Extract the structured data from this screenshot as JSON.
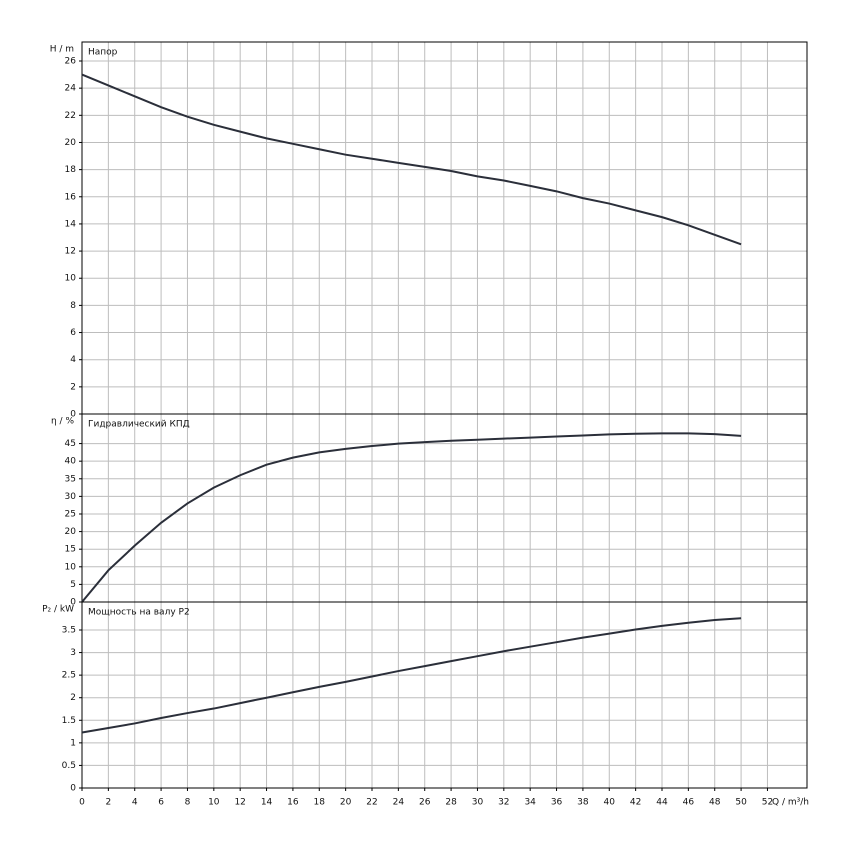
{
  "chart_data": [
    {
      "type": "line",
      "ylabel": "H / m",
      "title": "Напор",
      "x": [
        0,
        2,
        4,
        6,
        8,
        10,
        12,
        14,
        16,
        18,
        20,
        22,
        24,
        26,
        28,
        30,
        32,
        34,
        36,
        38,
        40,
        42,
        44,
        46,
        48,
        50
      ],
      "series": [
        {
          "color": "#2b2f3a",
          "values": [
            25,
            24.2,
            23.4,
            22.6,
            21.9,
            21.3,
            20.8,
            20.3,
            19.9,
            19.5,
            19.1,
            18.8,
            18.5,
            18.2,
            17.9,
            17.5,
            17.2,
            16.8,
            16.4,
            15.9,
            15.5,
            15.0,
            14.5,
            13.9,
            13.2,
            12.5
          ]
        }
      ],
      "xlim": [
        0,
        55
      ],
      "ylim": [
        0,
        27.4
      ],
      "yticks": [
        0,
        2,
        4,
        6,
        8,
        10,
        12,
        14,
        16,
        18,
        20,
        22,
        24,
        26
      ],
      "grid": true
    },
    {
      "type": "line",
      "ylabel": "η / %",
      "title": "Гидравлический КПД",
      "x": [
        0,
        2,
        4,
        6,
        8,
        10,
        12,
        14,
        16,
        18,
        20,
        22,
        24,
        26,
        28,
        30,
        32,
        34,
        36,
        38,
        40,
        42,
        44,
        46,
        48,
        50
      ],
      "series": [
        {
          "color": "#2b2f3a",
          "values": [
            0,
            9,
            16,
            22.5,
            28,
            32.5,
            36,
            39,
            41,
            42.5,
            43.5,
            44.3,
            45,
            45.4,
            45.8,
            46.1,
            46.4,
            46.7,
            47,
            47.3,
            47.6,
            47.8,
            47.9,
            47.9,
            47.7,
            47.2
          ]
        }
      ],
      "xlim": [
        0,
        55
      ],
      "ylim": [
        0,
        53.4
      ],
      "yticks": [
        0,
        5,
        10,
        15,
        20,
        25,
        30,
        35,
        40,
        45
      ],
      "grid": true
    },
    {
      "type": "line",
      "ylabel": "P₂ / kW",
      "title": "Мощность на валу P2",
      "xlabel": "Q / m³/h",
      "x": [
        0,
        2,
        4,
        6,
        8,
        10,
        12,
        14,
        16,
        18,
        20,
        22,
        24,
        26,
        28,
        30,
        32,
        34,
        36,
        38,
        40,
        42,
        44,
        46,
        48,
        50
      ],
      "series": [
        {
          "color": "#2b2f3a",
          "values": [
            1.23,
            1.33,
            1.43,
            1.55,
            1.66,
            1.76,
            1.88,
            2.0,
            2.12,
            2.24,
            2.35,
            2.47,
            2.59,
            2.7,
            2.81,
            2.92,
            3.03,
            3.13,
            3.23,
            3.33,
            3.42,
            3.51,
            3.59,
            3.66,
            3.72,
            3.76
          ]
        }
      ],
      "xlim": [
        0,
        55
      ],
      "ylim": [
        0,
        4.12
      ],
      "yticks": [
        0,
        0.5,
        1,
        1.5,
        2,
        2.5,
        3,
        3.5
      ],
      "xticks": [
        0,
        2,
        4,
        6,
        8,
        10,
        12,
        14,
        16,
        18,
        20,
        22,
        24,
        26,
        28,
        30,
        32,
        34,
        36,
        38,
        40,
        42,
        44,
        46,
        48,
        50,
        52
      ],
      "grid": true
    }
  ]
}
